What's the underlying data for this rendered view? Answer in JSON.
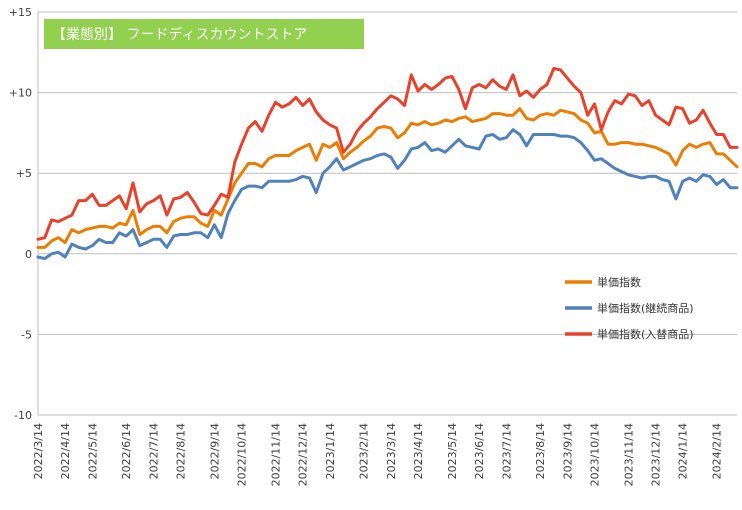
{
  "chart_data": {
    "type": "line",
    "title": "【業態別】 フードディスカウントストア",
    "title_bg_color": "#92d050",
    "ylim": [
      -10,
      15
    ],
    "ytick_values": [
      -10,
      -5,
      0,
      5,
      10,
      15
    ],
    "ytick_labels": [
      "-10",
      "-5",
      "0",
      "+5",
      "+10",
      "+15"
    ],
    "grid": "horizontal",
    "legend_position": "right",
    "x_tick_labels": [
      "2022/3/14",
      "2022/4/14",
      "2022/5/14",
      "2022/6/14",
      "2022/7/14",
      "2022/8/14",
      "2022/9/14",
      "2022/10/14",
      "2022/11/14",
      "2022/12/14",
      "2023/1/14",
      "2023/2/14",
      "2023/3/14",
      "2023/4/14",
      "2023/5/14",
      "2023/6/14",
      "2023/7/14",
      "2023/8/14",
      "2023/9/14",
      "2023/10/14",
      "2023/11/14",
      "2023/12/14",
      "2024/1/14",
      "2024/2/14"
    ],
    "x_tick_indices": [
      0,
      4,
      8,
      13,
      17,
      21,
      26,
      30,
      35,
      39,
      43,
      48,
      52,
      56,
      61,
      65,
      69,
      74,
      78,
      82,
      87,
      91,
      95,
      100
    ],
    "series": [
      {
        "name": "単価指数",
        "color": "#ed7d00",
        "values": [
          0.4,
          0.4,
          0.8,
          1.0,
          0.7,
          1.5,
          1.3,
          1.5,
          1.6,
          1.7,
          1.7,
          1.6,
          1.9,
          1.8,
          2.7,
          1.2,
          1.5,
          1.7,
          1.7,
          1.3,
          2.0,
          2.2,
          2.3,
          2.3,
          1.9,
          1.7,
          2.7,
          2.4,
          3.4,
          4.4,
          5.0,
          5.6,
          5.6,
          5.4,
          5.9,
          6.1,
          6.1,
          6.1,
          6.4,
          6.6,
          6.8,
          5.8,
          6.8,
          6.6,
          6.9,
          5.9,
          6.3,
          6.6,
          7.0,
          7.3,
          7.8,
          7.9,
          7.8,
          7.2,
          7.5,
          8.1,
          8.0,
          8.2,
          8.0,
          8.1,
          8.3,
          8.2,
          8.4,
          8.5,
          8.2,
          8.3,
          8.4,
          8.7,
          8.7,
          8.6,
          8.6,
          9.0,
          8.4,
          8.3,
          8.6,
          8.7,
          8.6,
          8.9,
          8.8,
          8.7,
          8.3,
          8.1,
          7.5,
          7.6,
          6.8,
          6.8,
          6.9,
          6.9,
          6.8,
          6.8,
          6.7,
          6.6,
          6.4,
          6.2,
          5.5,
          6.4,
          6.8,
          6.6,
          6.8,
          6.9,
          6.2,
          6.2,
          5.8,
          5.4
        ]
      },
      {
        "name": "単価指数(継続商品)",
        "color": "#4f81bd",
        "values": [
          -0.2,
          -0.3,
          0.0,
          0.1,
          -0.2,
          0.6,
          0.4,
          0.3,
          0.5,
          0.9,
          0.7,
          0.7,
          1.3,
          1.1,
          1.5,
          0.5,
          0.7,
          0.9,
          0.9,
          0.4,
          1.1,
          1.2,
          1.2,
          1.3,
          1.3,
          1.0,
          1.8,
          1.0,
          2.5,
          3.3,
          4.0,
          4.2,
          4.2,
          4.1,
          4.5,
          4.5,
          4.5,
          4.5,
          4.6,
          4.8,
          4.7,
          3.8,
          5.0,
          5.4,
          5.9,
          5.2,
          5.4,
          5.6,
          5.8,
          5.9,
          6.1,
          6.2,
          6.0,
          5.3,
          5.8,
          6.5,
          6.6,
          6.9,
          6.4,
          6.5,
          6.3,
          6.7,
          7.1,
          6.7,
          6.6,
          6.5,
          7.3,
          7.4,
          7.1,
          7.2,
          7.7,
          7.4,
          6.7,
          7.4,
          7.4,
          7.4,
          7.4,
          7.3,
          7.3,
          7.2,
          6.9,
          6.4,
          5.8,
          5.9,
          5.6,
          5.3,
          5.1,
          4.9,
          4.8,
          4.7,
          4.8,
          4.8,
          4.6,
          4.5,
          3.4,
          4.5,
          4.7,
          4.5,
          4.9,
          4.8,
          4.3,
          4.6,
          4.1,
          4.1
        ]
      },
      {
        "name": "単価指数(入替商品)",
        "color": "#e8412c",
        "values": [
          0.9,
          1.0,
          2.1,
          2.0,
          2.2,
          2.4,
          3.3,
          3.3,
          3.7,
          3.0,
          3.0,
          3.3,
          3.6,
          2.8,
          4.4,
          2.6,
          3.1,
          3.3,
          3.6,
          2.4,
          3.4,
          3.5,
          3.8,
          3.2,
          2.5,
          2.4,
          3.0,
          3.7,
          3.5,
          5.7,
          6.8,
          7.8,
          8.2,
          7.6,
          8.6,
          9.4,
          9.1,
          9.3,
          9.7,
          9.2,
          9.6,
          8.8,
          8.3,
          8.0,
          7.8,
          6.3,
          6.8,
          7.6,
          8.1,
          8.5,
          9.0,
          9.4,
          9.8,
          9.6,
          9.2,
          11.1,
          10.1,
          10.5,
          10.2,
          10.5,
          10.9,
          11.0,
          10.2,
          9.0,
          10.3,
          10.5,
          10.3,
          10.8,
          10.4,
          10.2,
          11.1,
          9.8,
          10.1,
          9.7,
          10.2,
          10.5,
          11.5,
          11.4,
          10.9,
          10.4,
          10.0,
          8.6,
          9.3,
          7.7,
          8.8,
          9.5,
          9.3,
          9.9,
          9.8,
          9.2,
          9.5,
          8.6,
          8.3,
          8.0,
          9.1,
          9.0,
          8.1,
          8.3,
          8.9,
          8.1,
          7.4,
          7.4,
          6.6,
          6.6
        ]
      }
    ]
  }
}
